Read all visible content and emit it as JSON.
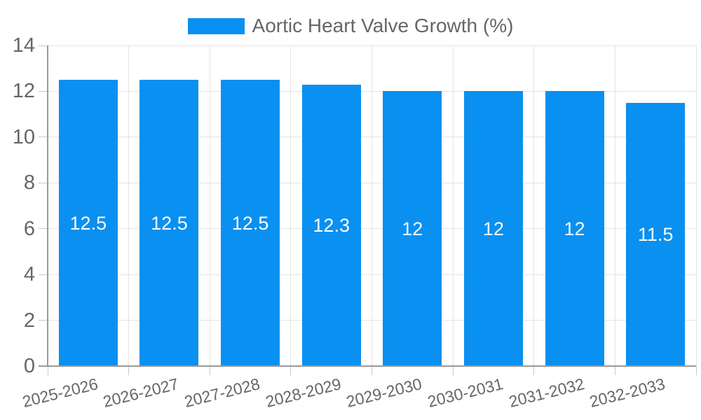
{
  "chart_data": {
    "type": "bar",
    "title": "",
    "legend_label": "Aortic Heart Valve Growth (%)",
    "legend_position": "top-center",
    "categories": [
      "2025-2026",
      "2026-2027",
      "2027-2028",
      "2028-2029",
      "2029-2030",
      "2030-2031",
      "2031-2032",
      "2032-2033"
    ],
    "values": [
      12.5,
      12.5,
      12.5,
      12.3,
      12,
      12,
      12,
      11.5
    ],
    "value_labels": [
      "12.5",
      "12.5",
      "12.5",
      "12.3",
      "12",
      "12",
      "12",
      "11.5"
    ],
    "xlabel": "",
    "ylabel": "",
    "ylim": [
      0,
      14
    ],
    "yticks": [
      0,
      2,
      4,
      6,
      8,
      10,
      12,
      14
    ],
    "grid": true,
    "x_label_rotation_deg": -14,
    "colors": {
      "bar": "#0990F0",
      "bar_label_text": "#FFFFFF",
      "axis_text": "#666666",
      "legend_text": "#666666",
      "gridline": "#E4E4E4",
      "axis_line": "#9A9A9A",
      "tick_mark": "#C9C9C9",
      "background": "#FFFFFF"
    }
  }
}
